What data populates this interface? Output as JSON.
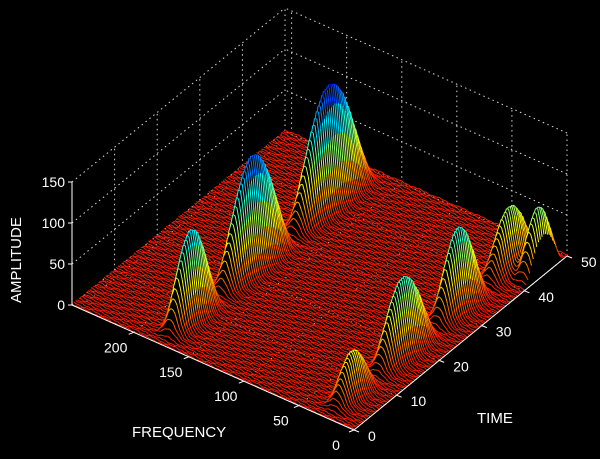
{
  "chart_data": {
    "type": "surface",
    "title": "",
    "x_axis": {
      "label": "TIME",
      "ticks": [
        "0",
        "10",
        "20",
        "30",
        "40",
        "50"
      ],
      "range": [
        0,
        50
      ]
    },
    "y_axis": {
      "label": "FREQUENCY",
      "ticks": [
        "0",
        "50",
        "100",
        "150",
        "200"
      ],
      "range": [
        0,
        256
      ]
    },
    "z_axis": {
      "label": "AMPLITUDE",
      "ticks": [
        "0",
        "50",
        "100",
        "150"
      ],
      "range": [
        0,
        150
      ]
    },
    "grid": true,
    "background": "#000000",
    "colormap": [
      "#ff1a00",
      "#ffff00",
      "#00ffff",
      "#0000ff"
    ],
    "peaks": [
      {
        "frequency": 175,
        "time_range": [
          1,
          13
        ],
        "amplitude": 110
      },
      {
        "frequency": 175,
        "time_range": [
          13,
          30
        ],
        "amplitude": 140
      },
      {
        "frequency": 175,
        "time_range": [
          30,
          49
        ],
        "amplitude": 150
      },
      {
        "frequency": 25,
        "time_range": [
          1,
          11
        ],
        "amplitude": 55
      },
      {
        "frequency": 25,
        "time_range": [
          11,
          25
        ],
        "amplitude": 95
      },
      {
        "frequency": 25,
        "time_range": [
          25,
          37
        ],
        "amplitude": 100
      },
      {
        "frequency": 25,
        "time_range": [
          37,
          49
        ],
        "amplitude": 75
      },
      {
        "frequency": 5,
        "time_range": [
          40,
          49
        ],
        "amplitude": 80
      }
    ]
  }
}
